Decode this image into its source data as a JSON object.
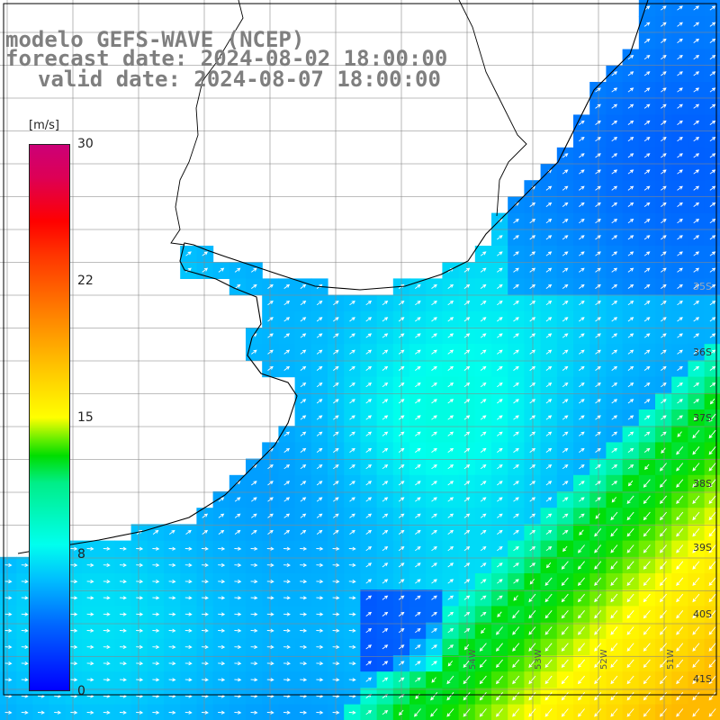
{
  "header": {
    "line1": "modelo GEFS-WAVE (NCEP)",
    "line2": "forecast date: 2024-08-02 18:00:00",
    "line3": "valid date: 2024-08-07 18:00:00"
  },
  "colorbar": {
    "unit": "[m/s]",
    "min": 0,
    "max": 30,
    "ticks": [
      "30",
      "22",
      "15",
      "8",
      "0"
    ],
    "colors": {
      "low": "#0000ff",
      "mid_low": "#00ffee",
      "mid": "#00dd00",
      "mid_high": "#ffff00",
      "high": "#ff0000",
      "top": "#cc0077"
    }
  },
  "map": {
    "field": "wind speed with direction arrows",
    "land_color": "#ffffff",
    "coastline_color": "#000000",
    "grid": true,
    "lat_labels": [
      "35S",
      "36S",
      "37S",
      "38S",
      "39S",
      "40S",
      "41S"
    ],
    "lon_labels": [
      "54W",
      "53W",
      "52W",
      "51W"
    ]
  }
}
